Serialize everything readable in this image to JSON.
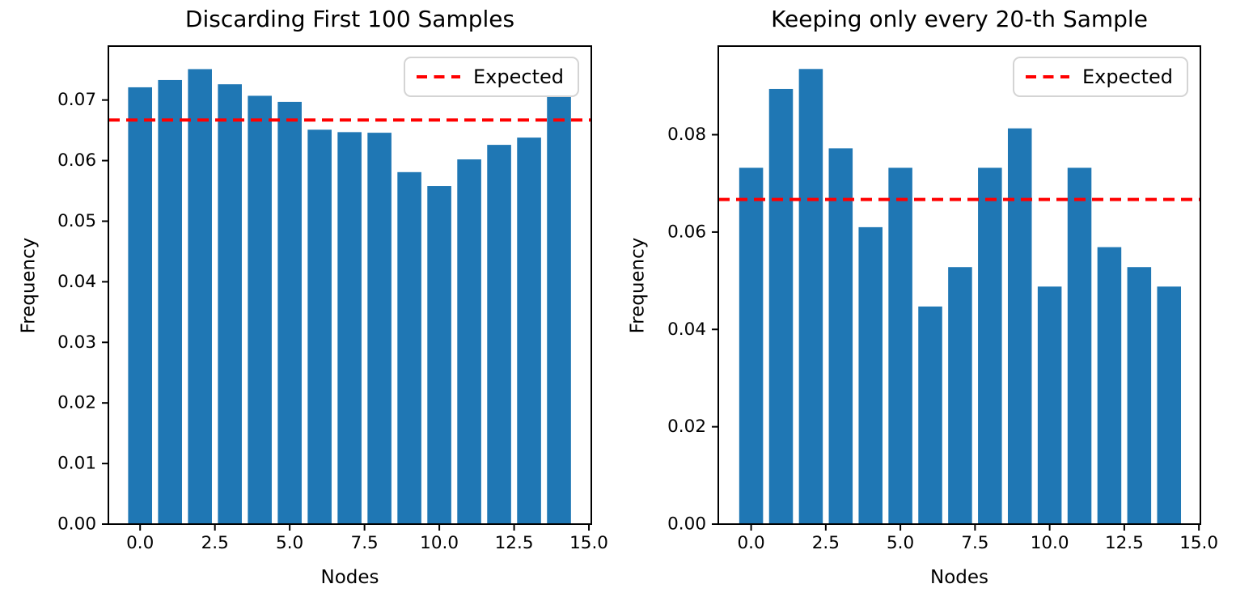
{
  "figure": {
    "background": "#ffffff",
    "bar_color": "#1f77b4",
    "expected_line_color": "#ff0000",
    "axis_color": "#000000",
    "legend_border_color": "#d4d4d4"
  },
  "chart_data": [
    {
      "type": "bar",
      "title": "Discarding First 100 Samples",
      "xlabel": "Nodes",
      "ylabel": "Frequency",
      "legend": {
        "label": "Expected",
        "line_style": "dashed",
        "line_color": "#ff0000",
        "position": "upper right"
      },
      "categories": [
        0,
        1,
        2,
        3,
        4,
        5,
        6,
        7,
        8,
        9,
        10,
        11,
        12,
        13,
        14
      ],
      "values": [
        0.0721,
        0.0733,
        0.0751,
        0.0726,
        0.0707,
        0.0697,
        0.0651,
        0.0647,
        0.0646,
        0.0581,
        0.0558,
        0.0602,
        0.0626,
        0.0638,
        0.0705
      ],
      "expected_value": 0.0667,
      "bar_width": 0.8,
      "bar_color": "#1f77b4",
      "grid": false,
      "xlim": [
        -1.06,
        15.08
      ],
      "ylim": [
        0,
        0.0789
      ],
      "xtick_values": [
        0.0,
        2.5,
        5.0,
        7.5,
        10.0,
        12.5,
        15.0
      ],
      "xtick_labels": [
        "0.0",
        "2.5",
        "5.0",
        "7.5",
        "10.0",
        "12.5",
        "15.0"
      ],
      "ytick_values": [
        0.0,
        0.01,
        0.02,
        0.03,
        0.04,
        0.05,
        0.06,
        0.07
      ],
      "ytick_labels": [
        "0.00",
        "0.01",
        "0.02",
        "0.03",
        "0.04",
        "0.05",
        "0.06",
        "0.07"
      ]
    },
    {
      "type": "bar",
      "title": "Keeping only every 20-th Sample",
      "xlabel": "Nodes",
      "ylabel": "Frequency",
      "legend": {
        "label": "Expected",
        "line_style": "dashed",
        "line_color": "#ff0000",
        "position": "upper right"
      },
      "categories": [
        0,
        1,
        2,
        3,
        4,
        5,
        6,
        7,
        8,
        9,
        10,
        11,
        12,
        13,
        14
      ],
      "values": [
        0.0732,
        0.0894,
        0.0935,
        0.0772,
        0.061,
        0.0732,
        0.0447,
        0.0528,
        0.0732,
        0.0813,
        0.0488,
        0.0732,
        0.0569,
        0.0528,
        0.0488
      ],
      "expected_value": 0.0667,
      "bar_width": 0.8,
      "bar_color": "#1f77b4",
      "grid": false,
      "xlim": [
        -1.1,
        15.05
      ],
      "ylim": [
        0,
        0.0982
      ],
      "xtick_values": [
        0.0,
        2.5,
        5.0,
        7.5,
        10.0,
        12.5,
        15.0
      ],
      "xtick_labels": [
        "0.0",
        "2.5",
        "5.0",
        "7.5",
        "10.0",
        "12.5",
        "15.0"
      ],
      "ytick_values": [
        0.0,
        0.02,
        0.04,
        0.06,
        0.08
      ],
      "ytick_labels": [
        "0.00",
        "0.02",
        "0.04",
        "0.06",
        "0.08"
      ]
    }
  ]
}
